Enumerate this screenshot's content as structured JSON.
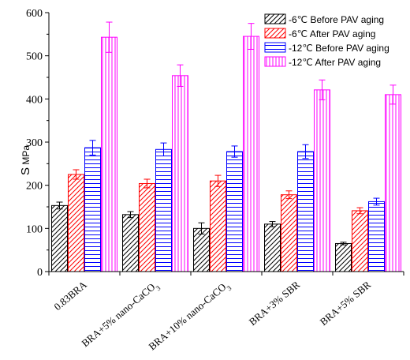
{
  "chart_data": {
    "type": "bar",
    "title": "",
    "xlabel": "",
    "ylabel": "S",
    "yunit": "MPa",
    "ylim": [
      0,
      600
    ],
    "yticks": [
      0,
      100,
      200,
      300,
      400,
      500,
      600
    ],
    "grid": false,
    "legend_position": "top-right",
    "categories": [
      "0.83BRA",
      "BRA+5% nano-CaCO3",
      "BRA+10% nano-CaCO3",
      "BRA+3% SBR",
      "BRA+5% SBR"
    ],
    "series": [
      {
        "name": "-6℃ Before PAV aging",
        "color": "#000000",
        "pattern": "diagonal",
        "values": [
          153,
          132,
          100,
          110,
          65
        ],
        "errors": [
          8,
          7,
          13,
          6,
          3
        ]
      },
      {
        "name": "-6℃ After PAV aging",
        "color": "#ff0000",
        "pattern": "diagonal",
        "values": [
          225,
          204,
          210,
          178,
          141
        ],
        "errors": [
          11,
          10,
          13,
          9,
          7
        ]
      },
      {
        "name": "-12℃ Before PAV aging",
        "color": "#0000ff",
        "pattern": "horizontal",
        "values": [
          287,
          283,
          278,
          278,
          162
        ],
        "errors": [
          17,
          15,
          13,
          16,
          8
        ]
      },
      {
        "name": "-12℃ After PAV aging",
        "color": "#ff00ff",
        "pattern": "vertical",
        "values": [
          543,
          454,
          545,
          421,
          410
        ],
        "errors": [
          35,
          25,
          30,
          23,
          22
        ]
      }
    ]
  }
}
